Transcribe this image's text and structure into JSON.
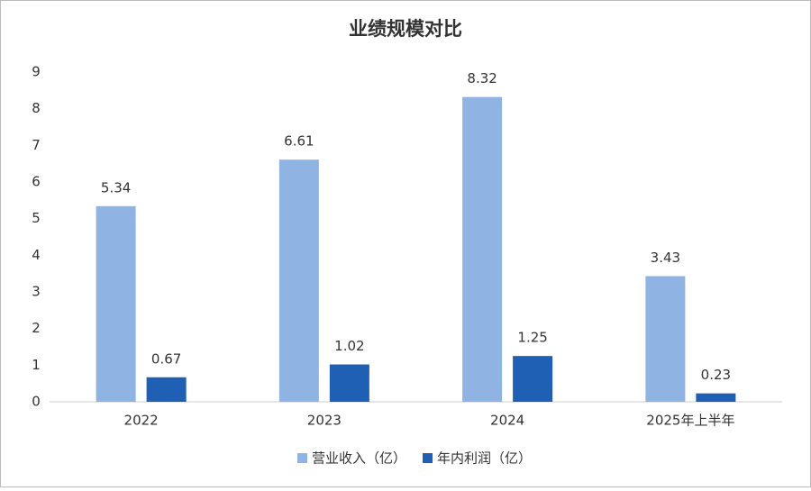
{
  "chart_data": {
    "type": "bar",
    "title": "业绩规模对比",
    "categories": [
      "2022",
      "2023",
      "2024",
      "2025年上半年"
    ],
    "series": [
      {
        "name": "营业收入（亿）",
        "color": "#8fb4e3",
        "values": [
          5.34,
          6.61,
          8.32,
          3.43
        ]
      },
      {
        "name": "年内利润（亿）",
        "color": "#1f5fb4",
        "values": [
          0.67,
          1.02,
          1.25,
          0.23
        ]
      }
    ],
    "ylim": [
      0,
      9
    ],
    "yticks": [
      0,
      1,
      2,
      3,
      4,
      5,
      6,
      7,
      8,
      9
    ],
    "grid": false,
    "legend": "bottom"
  }
}
